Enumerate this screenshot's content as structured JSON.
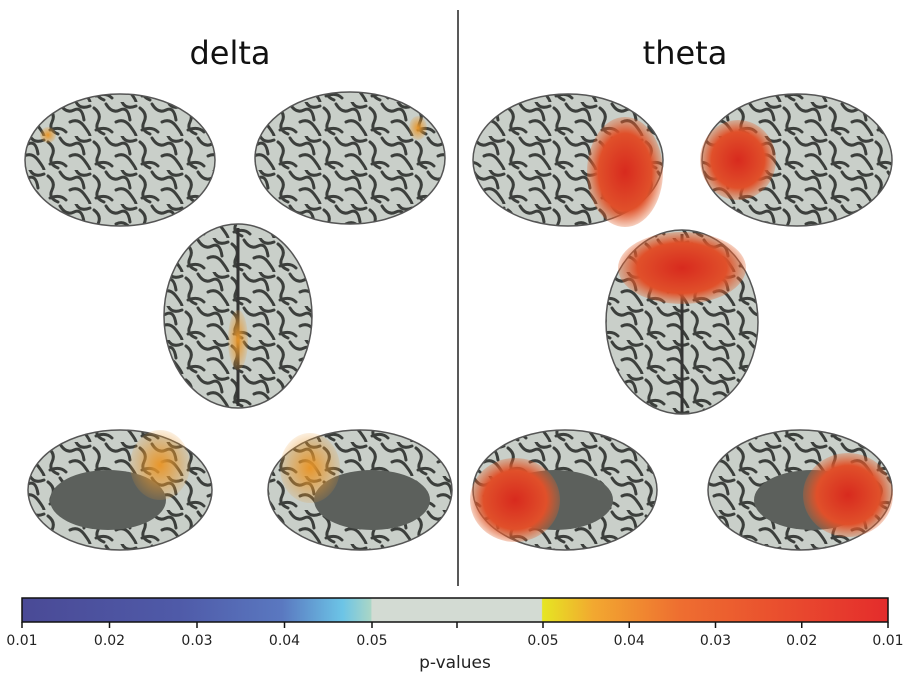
{
  "panels": [
    {
      "title": "delta"
    },
    {
      "title": "theta"
    }
  ],
  "colorbar": {
    "label": "p-values",
    "left_ticks": [
      0.01,
      0.02,
      0.03,
      0.04,
      0.05
    ],
    "right_ticks": [
      0.05,
      0.04,
      0.03,
      0.02,
      0.01
    ]
  }
}
